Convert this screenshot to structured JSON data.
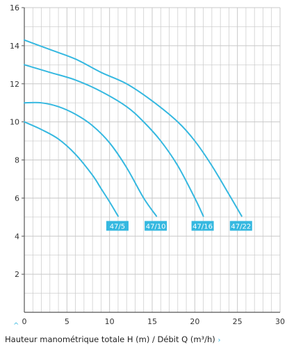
{
  "chart_data": {
    "type": "line",
    "title": "",
    "xlabel": "Hauteur manométrique totale H (m) / Débit Q (m³/h)",
    "ylabel": "",
    "xlim": [
      0,
      30
    ],
    "ylim": [
      0,
      16
    ],
    "x_ticks": [
      0,
      5,
      10,
      15,
      20,
      25,
      30
    ],
    "y_ticks": [
      2,
      4,
      6,
      8,
      10,
      12,
      14,
      16
    ],
    "grid": true,
    "colors": {
      "series": "#35b8e0",
      "badge": "#35b8e0",
      "grid": "#c8c8c8",
      "axis": "#555555"
    },
    "series": [
      {
        "name": "47/5",
        "x": [
          0,
          2,
          4,
          6,
          8,
          9,
          10,
          11
        ],
        "y": [
          10.0,
          9.6,
          9.1,
          8.3,
          7.2,
          6.5,
          5.8,
          5.05
        ]
      },
      {
        "name": "47/10",
        "x": [
          0,
          2,
          4,
          6,
          8,
          10,
          12,
          14,
          15.5
        ],
        "y": [
          11.0,
          11.0,
          10.8,
          10.4,
          9.8,
          8.9,
          7.6,
          6.0,
          5.05
        ]
      },
      {
        "name": "47/16",
        "x": [
          0,
          3,
          6,
          9,
          12,
          14,
          16,
          18,
          20,
          21
        ],
        "y": [
          13.0,
          12.6,
          12.2,
          11.6,
          10.8,
          10.0,
          9.0,
          7.7,
          6.0,
          5.05
        ]
      },
      {
        "name": "47/22",
        "x": [
          0,
          3,
          6,
          9,
          12,
          15,
          18,
          20,
          22,
          24,
          25.5
        ],
        "y": [
          14.3,
          13.8,
          13.3,
          12.6,
          12.0,
          11.1,
          10.0,
          9.0,
          7.7,
          6.2,
          5.05
        ]
      }
    ]
  },
  "footer": {
    "label": "Hauteur manométrique totale H (m) / Débit Q (m³/h)",
    "arrow": "›",
    "up_arrow": "^"
  }
}
